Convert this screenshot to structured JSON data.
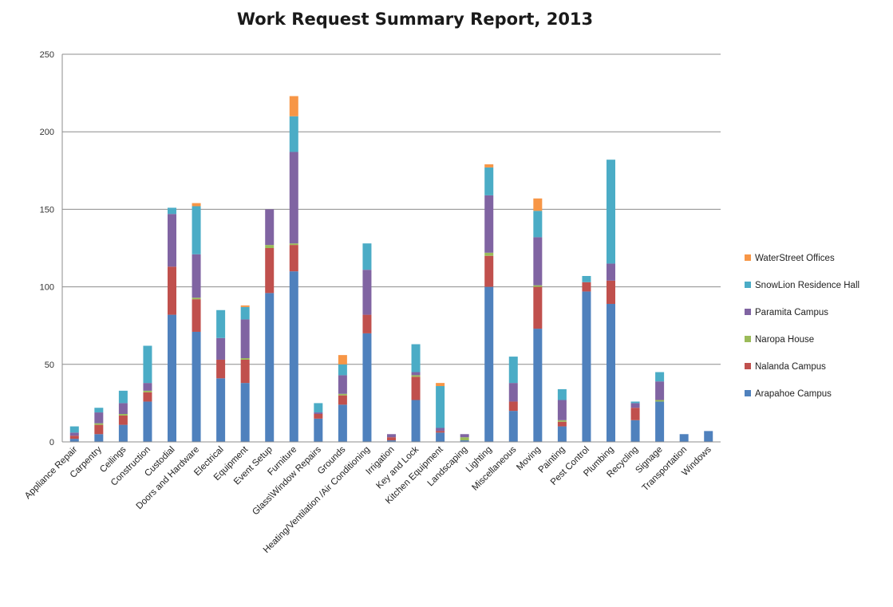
{
  "chart_data": {
    "type": "bar",
    "stacked": true,
    "title": "Work Request Summary Report, 2013",
    "xlabel": "",
    "ylabel": "",
    "ylim": [
      0,
      250
    ],
    "yticks": [
      0,
      50,
      100,
      150,
      200,
      250
    ],
    "grid": true,
    "legend_position": "right",
    "categories": [
      "Appliance Repair",
      "Carpentry",
      "Ceilings",
      "Construction",
      "Custodial",
      "Doors and Hardware",
      "Electrical",
      "Equipment",
      "Event Setup",
      "Furniture",
      "Glass\\Window Repairs",
      "Grounds",
      "Heating/Ventilation /Air Conditioning",
      "Irrigation",
      "Key and Lock",
      "Kitchen Equipment",
      "Landscaping",
      "Lighting",
      "Miscellaneous",
      "Moving",
      "Painting",
      "Pest Control",
      "Plumbing",
      "Recycling",
      "Signage",
      "Transportation",
      "Windows"
    ],
    "series": [
      {
        "name": "Arapahoe Campus",
        "color": "#4f81bd",
        "values": [
          2,
          5,
          11,
          26,
          82,
          71,
          41,
          38,
          96,
          110,
          15,
          24,
          70,
          1,
          27,
          6,
          1,
          100,
          20,
          73,
          10,
          97,
          89,
          14,
          26,
          5,
          7
        ]
      },
      {
        "name": "Nalanda Campus",
        "color": "#c0504d",
        "values": [
          2,
          6,
          6,
          6,
          31,
          21,
          12,
          15,
          29,
          17,
          3,
          6,
          12,
          2,
          15,
          1,
          0,
          20,
          6,
          27,
          3,
          6,
          15,
          8,
          0,
          0,
          0
        ]
      },
      {
        "name": "Naropa House",
        "color": "#9bbb59",
        "values": [
          0,
          1,
          1,
          1,
          0,
          1,
          0,
          1,
          2,
          1,
          0,
          1,
          0,
          0,
          1,
          0,
          2,
          2,
          0,
          1,
          1,
          0,
          0,
          0,
          1,
          0,
          0
        ]
      },
      {
        "name": "Paramita Campus",
        "color": "#8064a2",
        "values": [
          2,
          7,
          7,
          5,
          34,
          28,
          14,
          25,
          23,
          59,
          1,
          12,
          29,
          2,
          2,
          2,
          2,
          37,
          12,
          31,
          13,
          0,
          11,
          3,
          12,
          0,
          0
        ]
      },
      {
        "name": "SnowLion Residence Hall",
        "color": "#4bacc6",
        "values": [
          4,
          3,
          8,
          24,
          4,
          31,
          18,
          8,
          0,
          23,
          6,
          7,
          17,
          0,
          18,
          27,
          0,
          18,
          17,
          17,
          7,
          4,
          67,
          1,
          6,
          0,
          0
        ]
      },
      {
        "name": "WaterStreet Offices",
        "color": "#f79646",
        "values": [
          0,
          0,
          0,
          0,
          0,
          2,
          0,
          1,
          0,
          13,
          0,
          6,
          0,
          0,
          0,
          2,
          0,
          2,
          0,
          8,
          0,
          0,
          0,
          0,
          0,
          0,
          0
        ]
      }
    ]
  }
}
